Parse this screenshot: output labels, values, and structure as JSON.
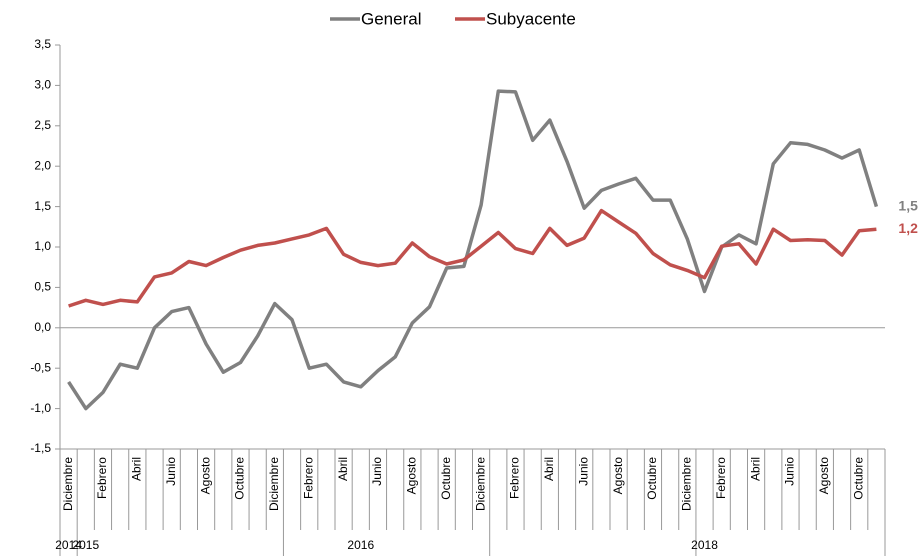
{
  "chart_data": {
    "type": "line",
    "categories": [
      "Diciembre",
      null,
      "Febrero",
      null,
      "Abril",
      null,
      "Junio",
      null,
      "Agosto",
      null,
      "Octubre",
      null,
      "Diciembre",
      null,
      "Febrero",
      null,
      "Abril",
      null,
      "Junio",
      null,
      "Agosto",
      null,
      "Octubre",
      null,
      "Diciembre",
      null,
      "Febrero",
      null,
      "Abril",
      null,
      "Junio",
      null,
      "Agosto",
      null,
      "Octubre",
      null,
      "Diciembre",
      null,
      "Febrero",
      null,
      "Abril",
      null,
      "Junio",
      null,
      "Agosto",
      null,
      "Octubre",
      null
    ],
    "year_categories": [
      "2014",
      "2015",
      null,
      null,
      null,
      null,
      null,
      null,
      null,
      null,
      null,
      null,
      null,
      null,
      null,
      null,
      null,
      "2016",
      null,
      null,
      null,
      null,
      null,
      null,
      null,
      null,
      null,
      null,
      null,
      null,
      null,
      null,
      null,
      null,
      null,
      null,
      null,
      "2018",
      null,
      null,
      null,
      null,
      null,
      null,
      null,
      null,
      null,
      null
    ],
    "series": [
      {
        "name": "General",
        "color": "#808080",
        "values": [
          -0.67,
          -1.0,
          -0.8,
          -0.45,
          -0.5,
          0.0,
          0.2,
          0.25,
          -0.2,
          -0.55,
          -0.43,
          -0.1,
          0.3,
          0.1,
          -0.5,
          -0.45,
          -0.67,
          -0.73,
          -0.53,
          -0.36,
          0.06,
          0.26,
          0.74,
          0.76,
          1.52,
          2.93,
          2.92,
          2.32,
          2.57,
          2.06,
          1.48,
          1.7,
          1.78,
          1.85,
          1.58,
          1.58,
          1.1,
          0.45,
          1.0,
          1.15,
          1.04,
          2.03,
          2.29,
          2.27,
          2.2,
          2.1,
          2.2,
          1.5
        ],
        "value_labels": [
          null,
          null,
          null,
          null,
          null,
          null,
          null,
          null,
          null,
          null,
          null,
          null,
          null,
          null,
          null,
          null,
          null,
          null,
          null,
          null,
          null,
          null,
          null,
          null,
          null,
          null,
          null,
          null,
          null,
          null,
          null,
          null,
          null,
          null,
          null,
          null,
          null,
          null,
          null,
          null,
          null,
          null,
          null,
          null,
          null,
          null,
          null,
          "1,5"
        ]
      },
      {
        "name": "Subyacente",
        "color": "#c0504d",
        "values": [
          0.27,
          0.34,
          0.29,
          0.34,
          0.32,
          0.63,
          0.68,
          0.82,
          0.77,
          0.87,
          0.96,
          1.02,
          1.05,
          1.1,
          1.15,
          1.23,
          0.91,
          0.81,
          0.77,
          0.8,
          1.05,
          0.88,
          0.79,
          0.84,
          1.01,
          1.18,
          0.98,
          0.92,
          1.23,
          1.02,
          1.11,
          1.45,
          1.31,
          1.17,
          0.92,
          0.78,
          0.71,
          0.62,
          1.01,
          1.04,
          0.79,
          1.22,
          1.08,
          1.09,
          1.08,
          0.9,
          1.2,
          1.22
        ],
        "value_labels": [
          null,
          null,
          null,
          null,
          null,
          null,
          null,
          null,
          null,
          null,
          null,
          null,
          null,
          null,
          null,
          null,
          null,
          null,
          null,
          null,
          null,
          null,
          null,
          null,
          null,
          null,
          null,
          null,
          null,
          null,
          null,
          null,
          null,
          null,
          null,
          null,
          null,
          null,
          null,
          null,
          null,
          null,
          null,
          null,
          null,
          null,
          null,
          "1,2"
        ]
      }
    ],
    "ylim": [
      -1.5,
      3.5
    ],
    "yticks": [
      {
        "value": -1.5,
        "label": "-1,5"
      },
      {
        "value": -1,
        "label": "-1,0"
      },
      {
        "value": -0.5,
        "label": "-0,5"
      },
      {
        "value": 0,
        "label": "0,0"
      },
      {
        "value": 0.5,
        "label": "0,5"
      },
      {
        "value": 1,
        "label": "1,0"
      },
      {
        "value": 1.5,
        "label": "1,5"
      },
      {
        "value": 2,
        "label": "2,0"
      },
      {
        "value": 2.5,
        "label": "2,5"
      },
      {
        "value": 3,
        "label": "3,0"
      },
      {
        "value": 3.5,
        "label": "3,5"
      }
    ],
    "legend": "top"
  }
}
